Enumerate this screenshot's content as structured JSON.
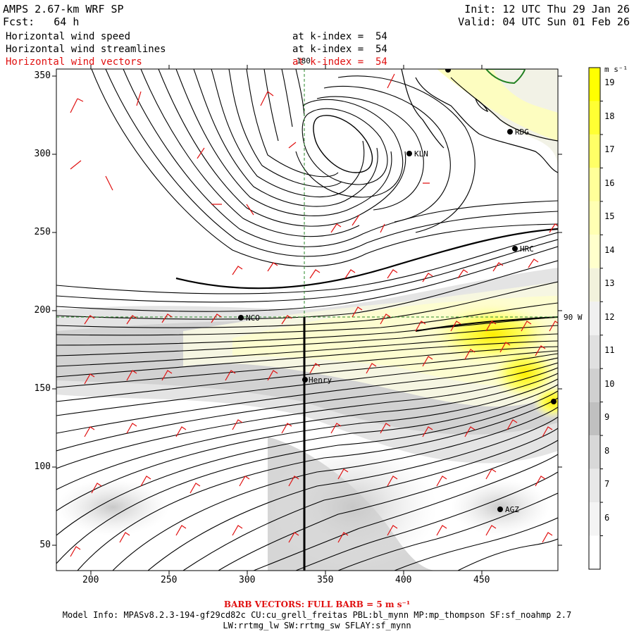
{
  "header": {
    "model": "AMPS 2.67-km WRF SP",
    "fcst": "Fcst:   64 h",
    "init": "Init: 12 UTC Thu 29 Jan 26",
    "valid": "Valid: 04 UTC Sun 01 Feb 26"
  },
  "fields": [
    {
      "name": "Horizontal wind speed",
      "level": "at k-index =  54"
    },
    {
      "name": "Horizontal wind streamlines",
      "level": "at k-index =  54"
    },
    {
      "name": "Horizontal wind vectors",
      "level": "at k-index =  54"
    }
  ],
  "map": {
    "x_ticks": [
      "200",
      "250",
      "300",
      "350",
      "400",
      "450"
    ],
    "y_ticks": [
      "350",
      "300",
      "250",
      "200",
      "150",
      "100",
      "50"
    ],
    "meridian_label": "180",
    "parallel_label": "90 W",
    "stations": [
      {
        "id": "RDG"
      },
      {
        "id": "KLN"
      },
      {
        "id": "HRC"
      },
      {
        "id": "NCO"
      },
      {
        "id": "Henry"
      },
      {
        "id": "AGZ"
      }
    ]
  },
  "colorbar": {
    "unit": "m s⁻¹",
    "levels": [
      "19",
      "18",
      "17",
      "16",
      "15",
      "14",
      "13",
      "12",
      "11",
      "10",
      "9",
      "8",
      "7",
      "6"
    ],
    "colors": [
      "#ffff00",
      "#ffff33",
      "#ffff66",
      "#ffff99",
      "#ffffb3",
      "#ffffcc",
      "#f2f2dc",
      "#f0f0f0",
      "#e0e0e0",
      "#d0d0d0",
      "#c0c0c0",
      "#d8d8d8",
      "#e8e8e8",
      "#f4f4f4",
      "#ffffff"
    ]
  },
  "footer": {
    "barb": "BARB VECTORS: FULL BARB = 5 m s⁻¹",
    "model_info": "Model Info: MPASv8.2.3-194-gf29cd82c CU:cu_grell_freitas PBL:bl_mynn MP:mp_thompson SF:sf_noahmp 2.7",
    "model_info2": "LW:rrtmg_lw SW:rrtmg_sw SFLAY:sf_mynn"
  }
}
